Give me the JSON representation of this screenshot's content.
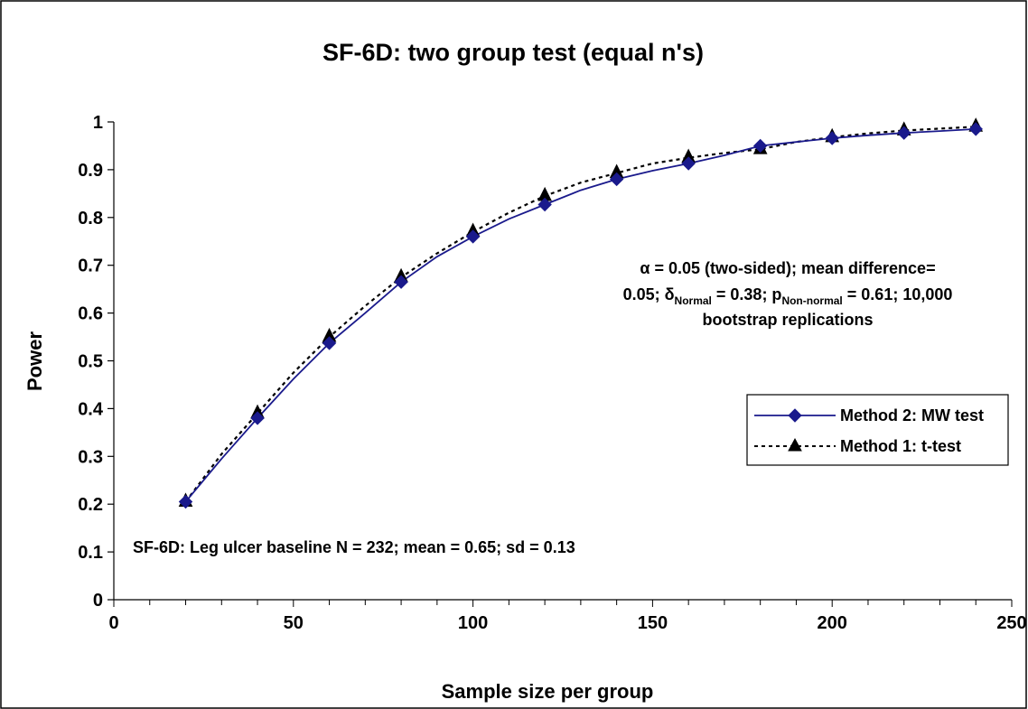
{
  "chart_data": {
    "type": "line",
    "title": "SF-6D: two group test (equal n's)",
    "xlabel": "Sample size per group",
    "ylabel": "Power",
    "xlim": [
      0,
      250
    ],
    "ylim": [
      0,
      1
    ],
    "x_ticks": [
      "0",
      "50",
      "100",
      "150",
      "200",
      "250"
    ],
    "y_ticks": [
      "0",
      "0.1",
      "0.2",
      "0.3",
      "0.4",
      "0.5",
      "0.6",
      "0.7",
      "0.8",
      "0.9",
      "1"
    ],
    "grid": false,
    "legend_position": "right",
    "series": [
      {
        "name": "Method 2: MW test",
        "color": "#1a1a8c",
        "marker": "diamond",
        "line_style": "solid",
        "x": [
          20,
          30,
          40,
          50,
          60,
          70,
          80,
          90,
          100,
          110,
          120,
          130,
          140,
          150,
          160,
          170,
          180,
          190,
          200,
          210,
          220,
          230,
          240
        ],
        "y": [
          0.205,
          0.295,
          0.38,
          0.462,
          0.537,
          0.6,
          0.665,
          0.718,
          0.76,
          0.797,
          0.827,
          0.857,
          0.88,
          0.898,
          0.913,
          0.93,
          0.95,
          0.958,
          0.966,
          0.972,
          0.977,
          0.981,
          0.985
        ]
      },
      {
        "name": "Method 1: t-test",
        "color": "#000000",
        "marker": "triangle",
        "line_style": "dotted",
        "x": [
          20,
          30,
          40,
          50,
          60,
          70,
          80,
          90,
          100,
          110,
          120,
          130,
          140,
          150,
          160,
          170,
          180,
          190,
          200,
          210,
          220,
          230,
          240
        ],
        "y": [
          0.205,
          0.305,
          0.39,
          0.475,
          0.55,
          0.615,
          0.675,
          0.725,
          0.77,
          0.81,
          0.845,
          0.873,
          0.893,
          0.913,
          0.925,
          0.935,
          0.943,
          0.958,
          0.968,
          0.976,
          0.982,
          0.986,
          0.99
        ]
      }
    ],
    "annotations": {
      "alpha_symbol": "α",
      "line1_rest": " = 0.05 (two-sided);  mean difference=",
      "line2_a": "0.05; ",
      "delta_symbol": "δ",
      "delta_sub": "Normal",
      "line2_b": " = 0.38; p",
      "p_sub": "Non-normal",
      "line2_c": " = 0.61; 10,000",
      "line3": "bootstrap replications",
      "baseline": "SF-6D: Leg ulcer baseline N = 232; mean = 0.65; sd = 0.13"
    }
  }
}
